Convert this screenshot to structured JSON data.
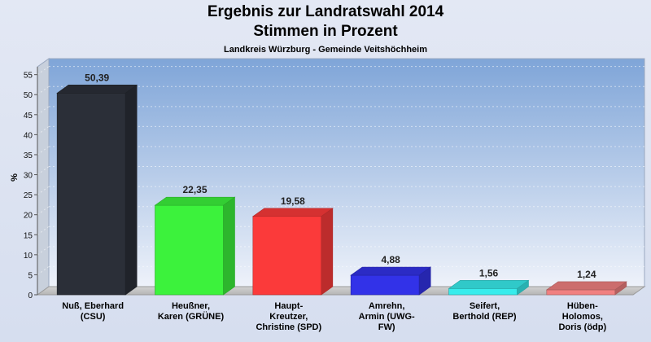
{
  "chart_data": {
    "type": "bar",
    "title": "Ergebnis zur Landratswahl 2014",
    "subtitle": "Stimmen in Prozent",
    "caption": "Landkreis Würzburg - Gemeinde Veitshöchheim",
    "ylabel": "%",
    "xlabel": "",
    "ylim": [
      0,
      59
    ],
    "yticks": [
      0,
      5,
      10,
      15,
      20,
      25,
      30,
      35,
      40,
      45,
      50,
      55
    ],
    "grid": true,
    "categories": [
      [
        "Nuß, Eberhard",
        "(CSU)"
      ],
      [
        "Heußner,",
        "Karen (GRÜNE)"
      ],
      [
        "Haupt-",
        "Kreutzer,",
        "Christine (SPD)"
      ],
      [
        "Amrehn,",
        "Armin (UWG-",
        "FW)"
      ],
      [
        "Seifert,",
        "Berthold (REP)"
      ],
      [
        "Hüben-",
        "Holomos,",
        "Doris (ödp)"
      ]
    ],
    "values": [
      50.39,
      22.35,
      19.58,
      4.88,
      1.56,
      1.24
    ],
    "value_labels": [
      "50,39",
      "22,35",
      "19,58",
      "4,88",
      "1,56",
      "1,24"
    ],
    "colors": [
      "#2b2f38",
      "#3cf23c",
      "#fb3a3a",
      "#3232e8",
      "#38ecec",
      "#f08080"
    ]
  }
}
